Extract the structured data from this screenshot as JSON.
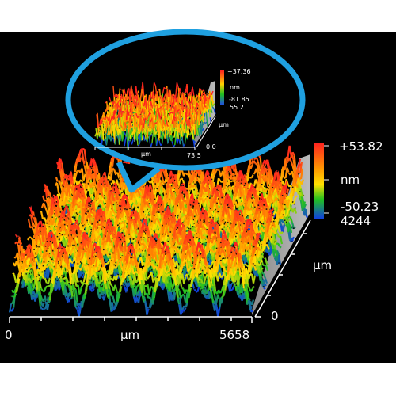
{
  "main_plot": {
    "colorbar": {
      "max": "+53.82",
      "unit": "nm",
      "min": "-50.23",
      "depth": "4244"
    },
    "axis_x": {
      "start": "0",
      "unit": "µm",
      "end": "5658"
    },
    "axis_y": {
      "unit": "µm",
      "start": "0"
    }
  },
  "inset_plot": {
    "colorbar": {
      "max": "+37.36",
      "unit": "nm",
      "min": "-81.85",
      "depth": "55.2"
    },
    "axis_x": {
      "start": "0.0",
      "unit": "µm",
      "end": "73.5"
    },
    "axis_y": {
      "unit": "µm"
    }
  },
  "colors": {
    "background": "#000000",
    "callout_border": "#1fa0e0",
    "scale_top": "#ff2020",
    "scale_mid_high": "#ffd000",
    "scale_mid": "#20c020",
    "scale_low": "#1040e0"
  }
}
